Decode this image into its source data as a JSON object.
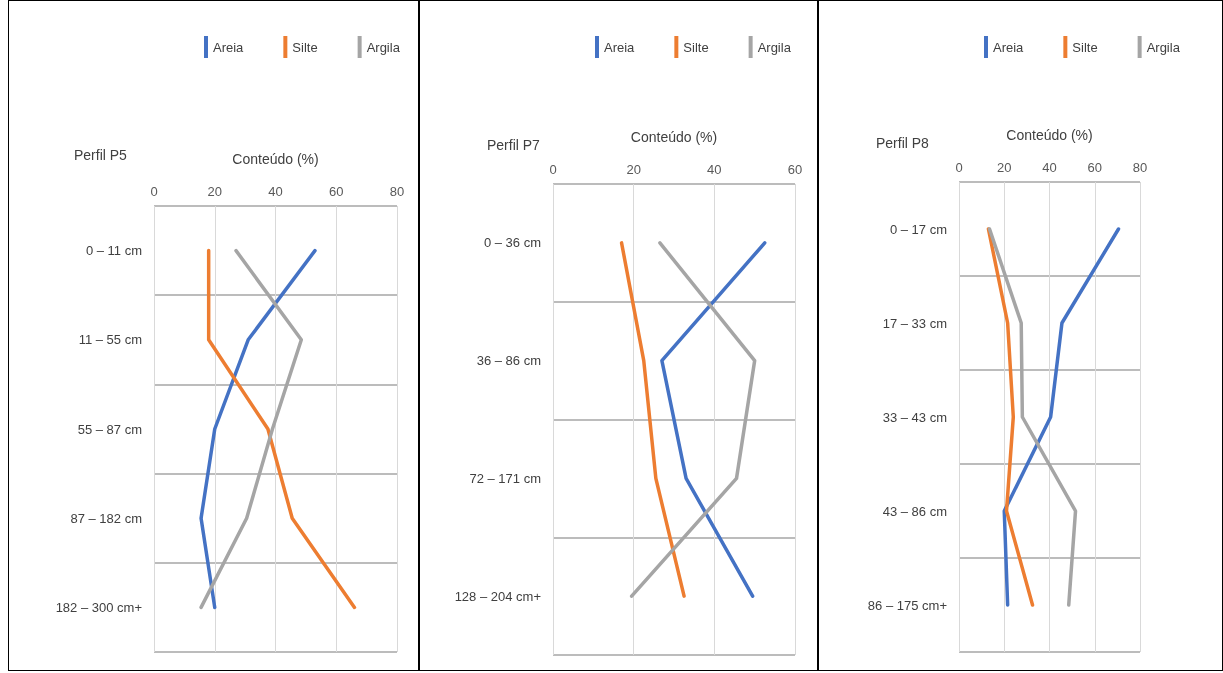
{
  "chart_data": [
    {
      "type": "line",
      "orientation": "horizontal",
      "title": "Perfil P5",
      "xlabel": "Conteúdo (%)",
      "categories": [
        "0 – 11 cm",
        "11 – 55 cm",
        "55 – 87 cm",
        "87 – 182 cm",
        "182 – 300 cm+"
      ],
      "series": [
        {
          "name": "Areia",
          "color": "#4472c4",
          "values": [
            53,
            31,
            20,
            15.5,
            20
          ]
        },
        {
          "name": "Silte",
          "color": "#ed7d31",
          "values": [
            18,
            18,
            37.5,
            45.5,
            66
          ]
        },
        {
          "name": "Argila",
          "color": "#a5a5a5",
          "values": [
            27,
            48.5,
            39,
            30.5,
            15.5
          ]
        }
      ],
      "xlim": [
        0,
        80
      ],
      "xticks": [
        0,
        20,
        40,
        60,
        80
      ],
      "grid": true,
      "legend": "top",
      "marker": "none",
      "line_style": "solid"
    },
    {
      "type": "line",
      "orientation": "horizontal",
      "title": "Perfil P7",
      "xlabel": "Conteúdo (%)",
      "categories": [
        "0 – 36 cm",
        "36 – 86 cm",
        "72 – 171 cm",
        "128 – 204 cm+"
      ],
      "series": [
        {
          "name": "Areia",
          "color": "#4472c4",
          "values": [
            52.5,
            27,
            33,
            49.5
          ]
        },
        {
          "name": "Silte",
          "color": "#ed7d31",
          "values": [
            17,
            22.5,
            25.5,
            32.5
          ]
        },
        {
          "name": "Argila",
          "color": "#a5a5a5",
          "values": [
            26.5,
            50,
            45.5,
            19.5
          ]
        }
      ],
      "xlim": [
        0,
        60
      ],
      "xticks": [
        0,
        20,
        40,
        60
      ],
      "grid": true,
      "legend": "top",
      "marker": "none",
      "line_style": "solid"
    },
    {
      "type": "line",
      "orientation": "horizontal",
      "title": "Perfil P8",
      "xlabel": "Conteúdo (%)",
      "categories": [
        "0 – 17 cm",
        "17 – 33 cm",
        "33 – 43 cm",
        "43 – 86 cm",
        "86 – 175 cm+"
      ],
      "series": [
        {
          "name": "Areia",
          "color": "#4472c4",
          "values": [
            70.5,
            45.5,
            40.5,
            20,
            21.5
          ]
        },
        {
          "name": "Silte",
          "color": "#ed7d31",
          "values": [
            13,
            21.5,
            24,
            21,
            32.5
          ]
        },
        {
          "name": "Argila",
          "color": "#a5a5a5",
          "values": [
            13.5,
            27.5,
            28,
            51.5,
            48.5
          ]
        }
      ],
      "xlim": [
        0,
        80
      ],
      "xticks": [
        0,
        20,
        40,
        60,
        80
      ],
      "grid": true,
      "legend": "top",
      "marker": "none",
      "line_style": "solid"
    }
  ]
}
